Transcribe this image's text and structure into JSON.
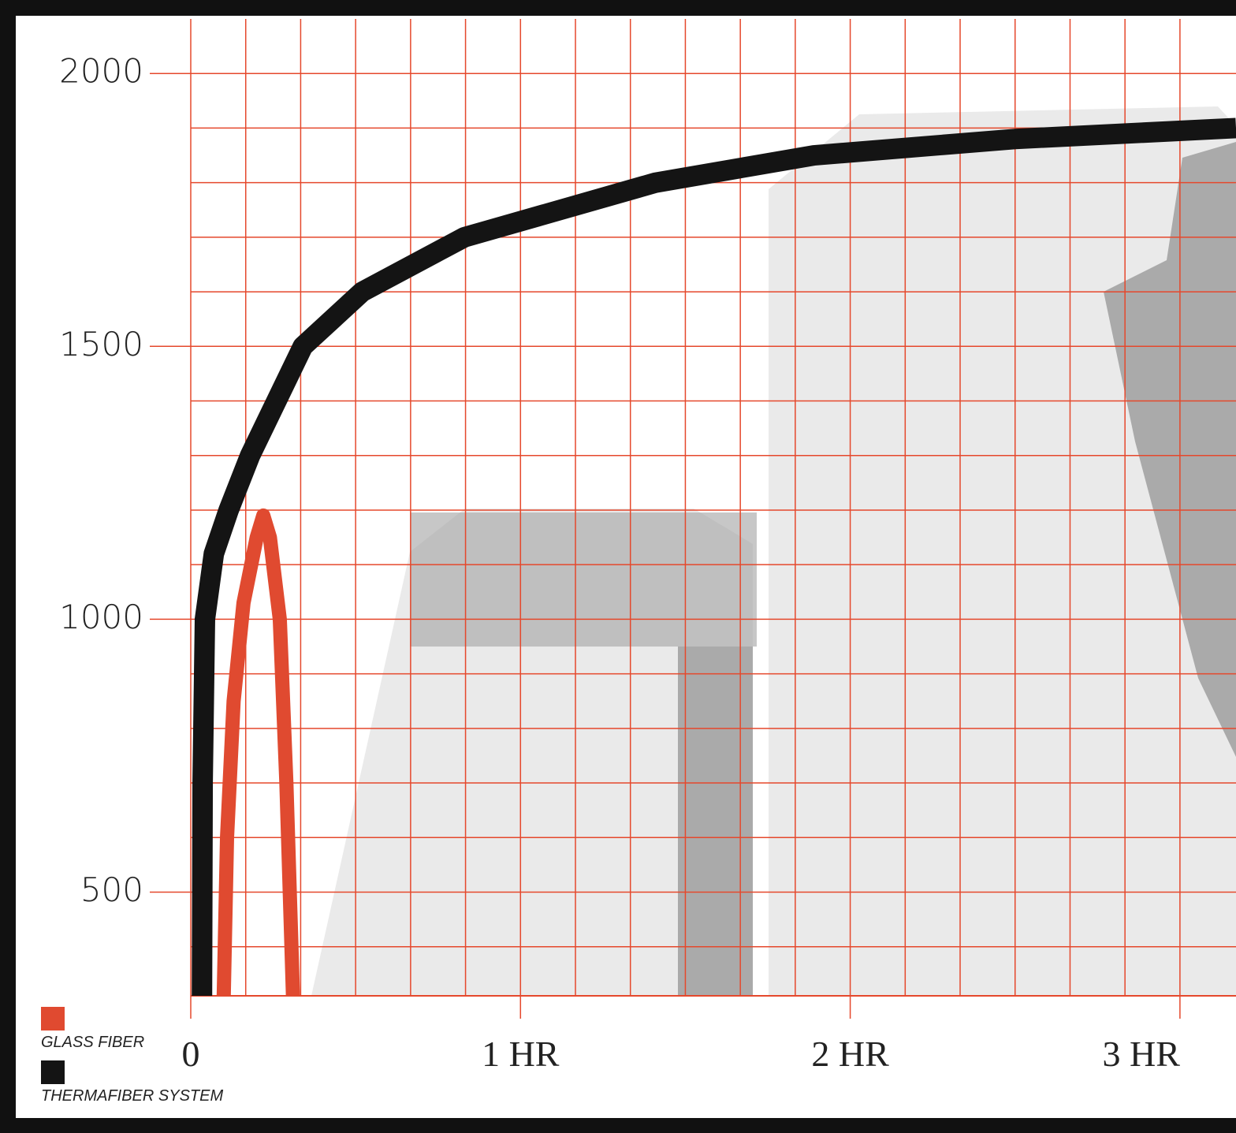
{
  "chart_data": {
    "type": "line",
    "xlim": [
      0,
      3.17
    ],
    "ylim": [
      310,
      2100
    ],
    "xticks": [
      {
        "value": 0,
        "label": "0"
      },
      {
        "value": 1,
        "label": "1 HR"
      },
      {
        "value": 2,
        "label": "2 HR"
      },
      {
        "value": 3,
        "label": "3 HR"
      }
    ],
    "yticks": [
      500,
      1000,
      1500,
      2000
    ],
    "xgrid": [
      0,
      0.1667,
      0.3333,
      0.5,
      0.6667,
      0.8333,
      1,
      1.1667,
      1.3333,
      1.5,
      1.6667,
      1.8333,
      2,
      2.1667,
      2.3333,
      2.5,
      2.6667,
      2.8333,
      3
    ],
    "ygrid": [
      400,
      500,
      600,
      700,
      800,
      900,
      1000,
      1100,
      1200,
      1300,
      1400,
      1500,
      1600,
      1700,
      1800,
      1900,
      2000
    ],
    "grid_color": "#e5482c",
    "series": [
      {
        "name": "GLASS FIBER",
        "color": "#e04a30",
        "x": [
          0.1,
          0.11,
          0.13,
          0.16,
          0.2,
          0.22,
          0.24,
          0.27,
          0.29,
          0.31
        ],
        "values": [
          310,
          600,
          850,
          1030,
          1150,
          1190,
          1150,
          1000,
          700,
          310
        ]
      },
      {
        "name": "THERMAFIBER SYSTEM",
        "color": "#141414",
        "x": [
          0.034,
          0.036,
          0.043,
          0.07,
          0.115,
          0.18,
          0.34,
          0.52,
          0.83,
          1.41,
          1.89,
          2.5,
          3.17
        ],
        "values": [
          310,
          700,
          1000,
          1120,
          1200,
          1300,
          1500,
          1600,
          1700,
          1800,
          1850,
          1880,
          1900
        ]
      }
    ]
  }
}
